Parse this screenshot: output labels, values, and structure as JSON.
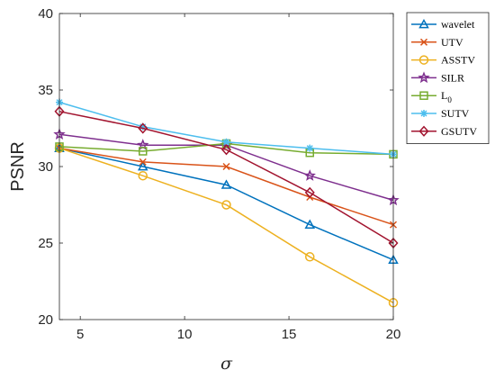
{
  "chart_data": {
    "type": "line",
    "title": "",
    "xlabel": "σ",
    "ylabel": "PSNR",
    "xlim": [
      4,
      20
    ],
    "ylim": [
      20,
      40
    ],
    "xticks": [
      5,
      10,
      15,
      20
    ],
    "yticks": [
      20,
      25,
      30,
      35,
      40
    ],
    "grid": false,
    "legend_position": "outside-top-right",
    "x": [
      4,
      8,
      12,
      16,
      20
    ],
    "series": [
      {
        "name": "wavelet",
        "color": "#0072BD",
        "marker": "triangle",
        "values": [
          31.2,
          30.0,
          28.8,
          26.2,
          23.9
        ]
      },
      {
        "name": "UTV",
        "color": "#D95319",
        "marker": "x",
        "values": [
          31.2,
          30.3,
          30.0,
          28.0,
          26.2
        ]
      },
      {
        "name": "ASSTV",
        "color": "#EDB120",
        "marker": "circle",
        "values": [
          31.2,
          29.4,
          27.5,
          24.1,
          21.1
        ]
      },
      {
        "name": "SILR",
        "color": "#7E2F8E",
        "marker": "star",
        "values": [
          32.1,
          31.4,
          31.4,
          29.4,
          27.8
        ]
      },
      {
        "name": "L",
        "name_sub": "0",
        "color": "#77AC30",
        "marker": "square",
        "values": [
          31.3,
          31.0,
          31.5,
          30.9,
          30.8
        ]
      },
      {
        "name": "SUTV",
        "color": "#4DBEEE",
        "marker": "asterisk",
        "values": [
          34.2,
          32.6,
          31.6,
          31.2,
          30.8
        ]
      },
      {
        "name": "GSUTV",
        "color": "#A2142F",
        "marker": "diamond",
        "values": [
          33.6,
          32.5,
          31.1,
          28.3,
          25.0
        ]
      }
    ]
  }
}
